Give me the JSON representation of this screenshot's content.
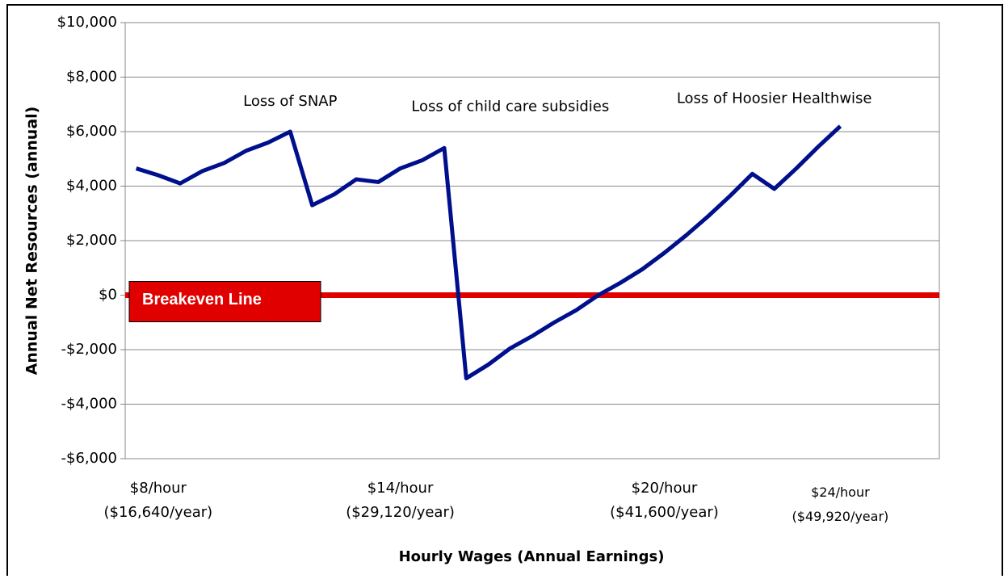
{
  "chart_data": {
    "type": "line",
    "x_label": "Hourly Wages (Annual Earnings)",
    "y_label": "Annual Net Resources (annual)",
    "categories": [
      null,
      [
        "$8/hour",
        "($16,640/year)"
      ],
      null,
      null,
      null,
      null,
      null,
      null,
      null,
      null,
      null,
      null,
      [
        "$14/hour",
        "($29,120/year)"
      ],
      null,
      null,
      null,
      null,
      null,
      null,
      null,
      null,
      null,
      null,
      null,
      [
        "$20/hour",
        "($41,600/year)"
      ],
      null,
      null,
      null,
      null,
      null,
      null,
      null,
      [
        "$24/hour",
        "($49,920/year)"
      ],
      null,
      null,
      null,
      null
    ],
    "series": [
      {
        "name": "Annual Net Resources",
        "color": "#000f8c",
        "values": [
          4650,
          4400,
          4100,
          4550,
          4850,
          5300,
          5600,
          6000,
          3300,
          3700,
          4250,
          4150,
          4650,
          4950,
          5400,
          -3050,
          -2550,
          -1950,
          -1500,
          -1000,
          -550,
          0,
          450,
          950,
          1550,
          2200,
          2900,
          3650,
          4450,
          3900,
          4650,
          5450,
          6200,
          null,
          null,
          null,
          null
        ]
      }
    ],
    "ylim": [
      -6000,
      10000
    ],
    "yticks": [
      {
        "value": -6000,
        "label": "-$6,000"
      },
      {
        "value": -4000,
        "label": "-$4,000"
      },
      {
        "value": -2000,
        "label": "-$2,000"
      },
      {
        "value": 0,
        "label": "$0"
      },
      {
        "value": 2000,
        "label": "$2,000"
      },
      {
        "value": 4000,
        "label": "$4,000"
      },
      {
        "value": 6000,
        "label": "$6,000"
      },
      {
        "value": 8000,
        "label": "$8,000"
      },
      {
        "value": 10000,
        "label": "$10,000"
      }
    ],
    "grid": true,
    "breakeven": {
      "label": "Breakeven Line",
      "value": 0,
      "color": "#e00000"
    },
    "annotations": [
      {
        "text": "Loss of SNAP",
        "x": 7,
        "y": 7100
      },
      {
        "text": "Loss of child care subsidies",
        "x": 17,
        "y": 6900
      },
      {
        "text": "Loss of Hoosier Healthwise",
        "x": 29,
        "y": 7200
      }
    ]
  }
}
